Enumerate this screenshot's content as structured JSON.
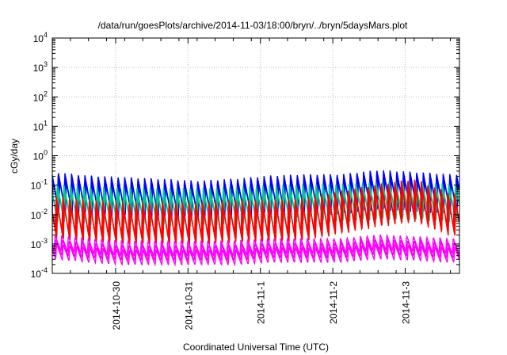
{
  "chart_data": {
    "type": "line",
    "title": "/data/run/goesPlots/archive/2014-11-03/18:00/bryn/../bryn/5daysMars.plot",
    "xlabel": "Coordinated Universal Time (UTC)",
    "ylabel": "cGy/day",
    "yscale": "log",
    "ylim": [
      0.0001,
      10000
    ],
    "y_ticks": [
      {
        "base": "10",
        "exp": "4"
      },
      {
        "base": "10",
        "exp": "3"
      },
      {
        "base": "10",
        "exp": "2"
      },
      {
        "base": "10",
        "exp": "1"
      },
      {
        "base": "10",
        "exp": "0"
      },
      {
        "base": "10",
        "exp": "-1"
      },
      {
        "base": "10",
        "exp": "-2"
      },
      {
        "base": "10",
        "exp": "-3"
      },
      {
        "base": "10",
        "exp": "-4"
      }
    ],
    "x_ticks": [
      "2014-10-30",
      "2014-10-31",
      "2014-11-1",
      "2014-11-2",
      "2014-11-3"
    ],
    "xlim": [
      "2014-10-29T03:00",
      "2014-11-03T18:00"
    ],
    "grid": true,
    "legend": "none",
    "series": [
      {
        "color": "#0000ff",
        "x": [
          "2014-10-29T03",
          "2014-10-29T15",
          "2014-10-30T03",
          "2014-10-30T15",
          "2014-10-31T03",
          "2014-10-31T15",
          "2014-11-01T03",
          "2014-11-01T15",
          "2014-11-02T03",
          "2014-11-02T15",
          "2014-11-03T03",
          "2014-11-03T15"
        ],
        "values": [
          0.06,
          0.045,
          0.04,
          0.035,
          0.03,
          0.035,
          0.045,
          0.05,
          0.05,
          0.07,
          0.06,
          0.05
        ]
      },
      {
        "color": "#00cc88",
        "x": [
          "2014-10-29T03",
          "2014-10-29T15",
          "2014-10-30T03",
          "2014-10-30T15",
          "2014-10-31T03",
          "2014-10-31T15",
          "2014-11-01T03",
          "2014-11-01T15",
          "2014-11-02T03",
          "2014-11-02T15",
          "2014-11-03T03",
          "2014-11-03T15"
        ],
        "values": [
          0.025,
          0.02,
          0.02,
          0.018,
          0.018,
          0.02,
          0.022,
          0.025,
          0.025,
          0.03,
          0.03,
          0.025
        ]
      },
      {
        "color": "#ff0000",
        "x": [
          "2014-10-29T03",
          "2014-10-29T15",
          "2014-10-30T03",
          "2014-10-30T15",
          "2014-10-31T03",
          "2014-10-31T15",
          "2014-11-01T03",
          "2014-11-01T15",
          "2014-11-02T03",
          "2014-11-02T15",
          "2014-11-03T03",
          "2014-11-03T15"
        ],
        "values": [
          0.008,
          0.006,
          0.005,
          0.005,
          0.005,
          0.006,
          0.006,
          0.007,
          0.012,
          0.02,
          0.03,
          0.01
        ]
      },
      {
        "color": "#ff00ff",
        "x": [
          "2014-10-29T03",
          "2014-10-29T15",
          "2014-10-30T03",
          "2014-10-30T15",
          "2014-10-31T03",
          "2014-10-31T15",
          "2014-11-01T03",
          "2014-11-01T15",
          "2014-11-02T03",
          "2014-11-02T15",
          "2014-11-03T03",
          "2014-11-03T15"
        ],
        "values": [
          0.0008,
          0.0006,
          0.0005,
          0.0005,
          0.0005,
          0.0005,
          0.0006,
          0.0006,
          0.0006,
          0.0008,
          0.0007,
          0.0006
        ]
      }
    ]
  }
}
